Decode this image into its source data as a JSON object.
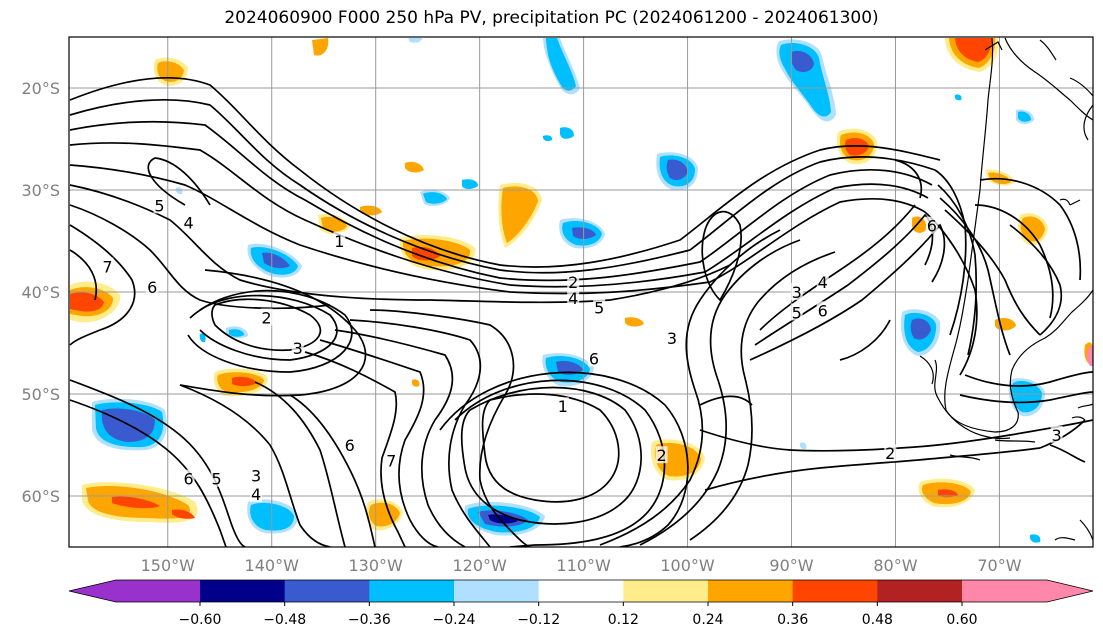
{
  "title": "2024060900 F000 250 hPa PV, precipitation PC (2024061200 - 2024061300)",
  "map": {
    "lat_labels": [
      {
        "text": "20°S",
        "lat": -20
      },
      {
        "text": "30°S",
        "lat": -30
      },
      {
        "text": "40°S",
        "lat": -40
      },
      {
        "text": "50°S",
        "lat": -50
      },
      {
        "text": "60°S",
        "lat": -60
      }
    ],
    "lon_labels": [
      {
        "text": "150°W",
        "lon": -150
      },
      {
        "text": "140°W",
        "lon": -140
      },
      {
        "text": "130°W",
        "lon": -130
      },
      {
        "text": "120°W",
        "lon": -120
      },
      {
        "text": "110°W",
        "lon": -110
      },
      {
        "text": "100°W",
        "lon": -100
      },
      {
        "text": "90°W",
        "lon": -90
      },
      {
        "text": "80°W",
        "lon": -80
      },
      {
        "text": "70°W",
        "lon": -70
      }
    ],
    "extent": {
      "lon_min": -159.5,
      "lon_max": -61,
      "lat_max": -15,
      "lat_min": -65
    },
    "gridlines": true,
    "contour_labels": [
      {
        "text": "5",
        "lon": -150.8,
        "lat": -31.5
      },
      {
        "text": "4",
        "lon": -148.0,
        "lat": -33.2
      },
      {
        "text": "7",
        "lon": -155.8,
        "lat": -37.5
      },
      {
        "text": "6",
        "lon": -151.5,
        "lat": -39.5
      },
      {
        "text": "1",
        "lon": -133.5,
        "lat": -35.0
      },
      {
        "text": "2",
        "lon": -140.5,
        "lat": -42.5
      },
      {
        "text": "3",
        "lon": -137.5,
        "lat": -45.5
      },
      {
        "text": "2",
        "lon": -111.0,
        "lat": -39.0
      },
      {
        "text": "4",
        "lon": -111.0,
        "lat": -40.6
      },
      {
        "text": "5",
        "lon": -108.5,
        "lat": -41.5
      },
      {
        "text": "6",
        "lon": -109.0,
        "lat": -46.5
      },
      {
        "text": "3",
        "lon": -101.5,
        "lat": -44.5
      },
      {
        "text": "1",
        "lon": -112.0,
        "lat": -51.2
      },
      {
        "text": "2",
        "lon": -102.5,
        "lat": -56.0
      },
      {
        "text": "6",
        "lon": -132.5,
        "lat": -55.0
      },
      {
        "text": "7",
        "lon": -128.5,
        "lat": -56.5
      },
      {
        "text": "6",
        "lon": -148.0,
        "lat": -58.3
      },
      {
        "text": "5",
        "lon": -145.3,
        "lat": -58.3
      },
      {
        "text": "3",
        "lon": -141.5,
        "lat": -58.0
      },
      {
        "text": "4",
        "lon": -141.5,
        "lat": -59.8
      },
      {
        "text": "3",
        "lon": -89.5,
        "lat": -40.0
      },
      {
        "text": "4",
        "lon": -87.0,
        "lat": -39.0
      },
      {
        "text": "5",
        "lon": -89.5,
        "lat": -42.0
      },
      {
        "text": "6",
        "lon": -87.0,
        "lat": -41.8
      },
      {
        "text": "6",
        "lon": -76.5,
        "lat": -33.5
      },
      {
        "text": "2",
        "lon": -80.5,
        "lat": -55.8
      },
      {
        "text": "3",
        "lon": -64.5,
        "lat": -54.0
      }
    ]
  },
  "colorbar": {
    "tick_labels": [
      "−0.60",
      "−0.48",
      "−0.36",
      "−0.24",
      "−0.12",
      "0.12",
      "0.24",
      "0.36",
      "0.48",
      "0.60"
    ],
    "under_color": "#9932cc",
    "over_color": "#ff88aa",
    "colors": [
      "#00008b",
      "#3a5bd0",
      "#00bfff",
      "#b0e0ff",
      "#ffffff",
      "#ffec8b",
      "#ffa500",
      "#ff4500",
      "#b22222"
    ]
  }
}
